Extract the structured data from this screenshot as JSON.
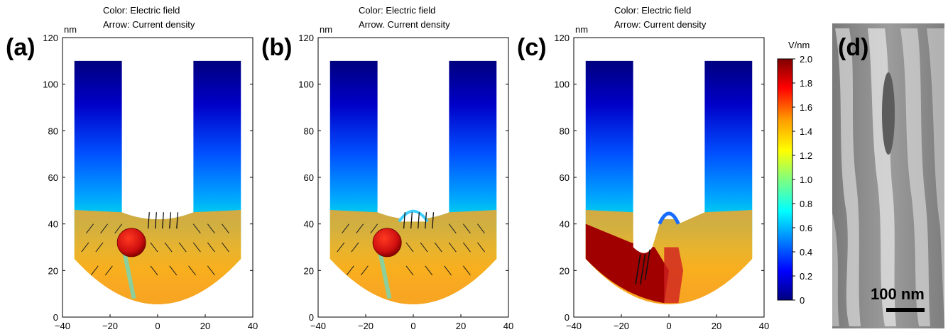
{
  "panels": [
    {
      "letter": "(a)",
      "header_line1": "Color: Electric field",
      "header_line2": "Arrow: Current density",
      "unit": "nm",
      "variant": "sphere"
    },
    {
      "letter": "(b)",
      "header_line1": "Color: Electric field",
      "header_line2": "Arrow. Current density",
      "unit": "nm",
      "variant": "sphere_bump"
    },
    {
      "letter": "(c)",
      "header_line1": "Color: Electric field",
      "header_line2": "Arrow: Current density",
      "unit": "nm",
      "variant": "etched"
    }
  ],
  "sem_panel": {
    "letter": "(d)",
    "scale_bar_label": "100 nm"
  },
  "colorbar": {
    "unit": "V/nm",
    "ticks": [
      "2.0",
      "1.8",
      "1.6",
      "1.4",
      "1.2",
      "1.0",
      "0.8",
      "0.6",
      "0.4",
      "0.2",
      "0"
    ],
    "colormap": [
      "#00007f",
      "#0000ff",
      "#007fff",
      "#00ffff",
      "#7fff7f",
      "#ffff00",
      "#ff7f00",
      "#ff0000",
      "#7f0000"
    ]
  },
  "chart_data": [
    {
      "type": "heatmap",
      "title": "Color: Electric field / Arrow: Current density",
      "xlim": [
        -40,
        40
      ],
      "ylim": [
        0,
        120
      ],
      "xticks": [
        -40,
        -20,
        0,
        20,
        40
      ],
      "yticks": [
        0,
        20,
        40,
        60,
        80,
        100,
        120
      ],
      "yunit": "nm",
      "color_quantity": "Electric field (V/nm)",
      "color_range": [
        0,
        2.0
      ]
    },
    {
      "type": "heatmap",
      "title": "Color: Electric field / Arrow. Current density",
      "xlim": [
        -40,
        40
      ],
      "ylim": [
        0,
        120
      ],
      "xticks": [
        -40,
        -20,
        0,
        20,
        40
      ],
      "yticks": [
        0,
        20,
        40,
        60,
        80,
        100,
        120
      ],
      "yunit": "nm",
      "color_quantity": "Electric field (V/nm)",
      "color_range": [
        0,
        2.0
      ]
    },
    {
      "type": "heatmap",
      "title": "Color: Electric field / Arrow: Current density",
      "xlim": [
        -40,
        40
      ],
      "ylim": [
        0,
        120
      ],
      "xticks": [
        -40,
        -20,
        0,
        20,
        40
      ],
      "yticks": [
        0,
        20,
        40,
        60,
        80,
        100,
        120
      ],
      "yunit": "nm",
      "color_quantity": "Electric field (V/nm)",
      "color_range": [
        0,
        2.0
      ]
    }
  ]
}
